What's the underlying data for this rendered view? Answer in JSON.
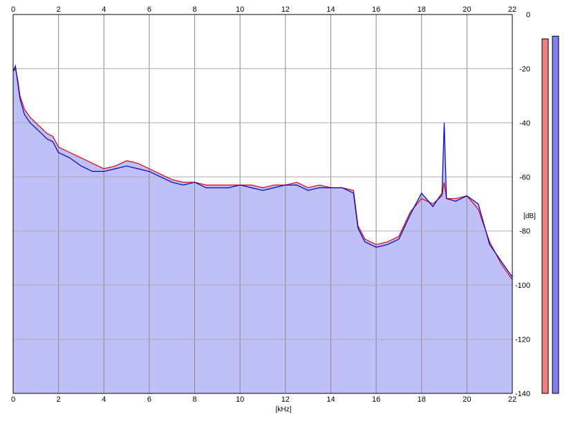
{
  "chart_data": {
    "type": "area",
    "xlabel": "[kHz]",
    "ylabel": "[dB]",
    "xlim": [
      0,
      22
    ],
    "ylim": [
      -140,
      0
    ],
    "x_ticks": [
      "0",
      "2",
      "4",
      "6",
      "8",
      "10",
      "12",
      "14",
      "16",
      "18",
      "20",
      "22"
    ],
    "y_ticks": [
      "0",
      "-20",
      "-40",
      "-60",
      "-80",
      "-100",
      "-120",
      "-140"
    ],
    "grid": true,
    "colors": {
      "fill": "#c0c0f8",
      "left": "#e00000",
      "right": "#0000c0",
      "left_meter": "#f08080",
      "right_meter": "#8080f0"
    },
    "x": [
      0,
      0.1,
      0.2,
      0.3,
      0.5,
      0.75,
      1,
      1.25,
      1.5,
      1.75,
      2,
      2.5,
      3,
      3.5,
      4,
      4.5,
      5,
      5.5,
      6,
      6.5,
      7,
      7.5,
      8,
      8.5,
      9,
      9.5,
      10,
      10.5,
      11,
      11.5,
      12,
      12.5,
      13,
      13.5,
      14,
      14.5,
      15,
      15.2,
      15.5,
      16,
      16.5,
      17,
      17.5,
      18,
      18.5,
      18.9,
      19,
      19.1,
      19.5,
      20,
      20.5,
      21,
      21.5,
      22
    ],
    "series": [
      {
        "values": [
          -21,
          -20,
          -24,
          -30,
          -35,
          -38,
          -40,
          -42,
          -44,
          -45,
          -49,
          -51,
          -53,
          -55,
          -57,
          -56,
          -54,
          -55,
          -57,
          -59,
          -61,
          -62,
          -62,
          -63,
          -63,
          -63,
          -63,
          -63,
          -64,
          -63,
          -63,
          -62,
          -64,
          -63,
          -64,
          -64,
          -65,
          -78,
          -83,
          -85,
          -84,
          -82,
          -73,
          -68,
          -70,
          -67,
          -62,
          -68,
          -68,
          -67,
          -72,
          -84,
          -92,
          -98
        ]
      },
      {
        "values": [
          -21,
          -19,
          -25,
          -31,
          -37,
          -40,
          -42,
          -44,
          -46,
          -47,
          -51,
          -53,
          -56,
          -58,
          -58,
          -57,
          -56,
          -57,
          -58,
          -60,
          -62,
          -63,
          -62,
          -64,
          -64,
          -64,
          -63,
          -64,
          -65,
          -64,
          -63,
          -63,
          -65,
          -64,
          -64,
          -64,
          -66,
          -79,
          -84,
          -86,
          -85,
          -83,
          -74,
          -66,
          -71,
          -66,
          -40,
          -68,
          -69,
          -67,
          -70,
          -85,
          -91,
          -97
        ]
      }
    ],
    "meters": [
      {
        "level_db": -9
      },
      {
        "level_db": -8
      }
    ]
  }
}
